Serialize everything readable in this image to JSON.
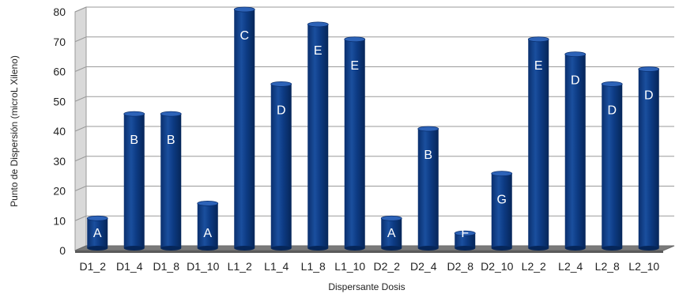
{
  "chart_data": {
    "type": "bar",
    "title": "",
    "xlabel": "Dispersante  Dosis",
    "ylabel": "Punto de Dispersión (microL Xileno)",
    "ylim": [
      0,
      80
    ],
    "yticks": [
      0,
      10,
      20,
      30,
      40,
      50,
      60,
      70,
      80
    ],
    "grid": true,
    "legend": "none",
    "categories": [
      "D1_2",
      "D1_4",
      "D1_8",
      "D1_10",
      "L1_2",
      "L1_4",
      "L1_8",
      "L1_10",
      "D2_2",
      "D2_4",
      "D2_8",
      "D2_10",
      "L2_2",
      "L2_4",
      "L2_8",
      "L2_10"
    ],
    "series": [
      {
        "values": [
          10,
          45,
          45,
          15,
          80,
          55,
          75,
          70,
          10,
          40,
          5,
          25,
          70,
          65,
          55,
          60
        ],
        "labels": [
          "A",
          "B",
          "B",
          "A",
          "C",
          "D",
          "E",
          "E",
          "A",
          "B",
          "F",
          "G",
          "E",
          "D",
          "D",
          "D"
        ],
        "color": "#0b3a86"
      }
    ]
  }
}
